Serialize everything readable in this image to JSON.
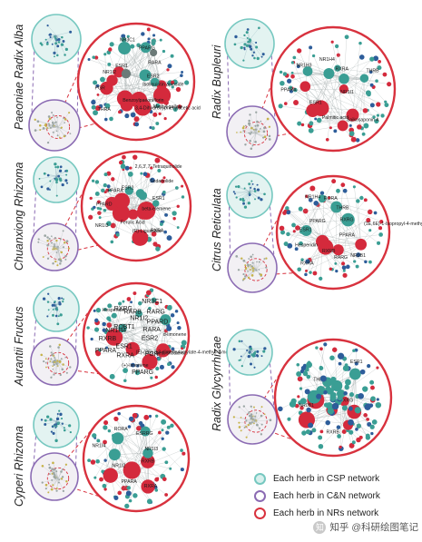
{
  "colors": {
    "teal": "#3a9e94",
    "teal_ring": "#76c8c0",
    "purple_ring": "#8b6bb3",
    "red": "#d42a3c",
    "red_ring": "#d8323e",
    "blue_node": "#2d5d9a",
    "grey_node": "#6b7a78"
  },
  "herbs": [
    {
      "name": "Paeoniae Radix Alba",
      "nodes": {
        "red": [
          "ESR1",
          "NR3C1",
          "PPARG",
          "NR1I2",
          "RARA",
          "THRA",
          "ESR2",
          "PGR",
          "NR1I3"
        ],
        "teal": [
          "Paeoniflorin",
          "Albiflorin",
          "benzoic acid",
          "(+)-catechin",
          "gallic acid",
          "kaempferol"
        ],
        "labels": [
          "Isoliquiritin apioside",
          "Methyl gallate",
          "3,4-Dihydroxyphenylacetic acid",
          "Benzoylpaeoniflorin",
          "THRA",
          "PGR",
          "NR1I2",
          "ESR1",
          "NR3C1",
          "PPARG",
          "RARA",
          "ESR2"
        ]
      }
    },
    {
      "name": "Chuanxiong Rhizoma",
      "nodes": {
        "red": [
          "RXRA",
          "ESR1",
          "NR3C1",
          "PPARG",
          "ESR2",
          "PPARD",
          "NR1I3"
        ],
        "teal": [
          "Ligustilide",
          "senkyunolide A",
          "Ferulic acid",
          "butylidenephthalide"
        ],
        "labels": [
          "beta-elemene",
          "RXRA",
          "(R)-Ligustilide",
          "Ferulic Acid",
          "NR1I3",
          "PPARD",
          "PPARA",
          "ESR2",
          "2,6,3',7'-Tetraquinolide",
          "Sedanolide",
          "ESR1"
        ]
      }
    },
    {
      "name": "Aurantii Fructus",
      "nodes": {
        "red": [
          "ESR1",
          "PPARG",
          "RXRA",
          "NR3C1"
        ],
        "teal": [
          "Naringenin",
          "Hesperidin",
          "Nobiletin"
        ],
        "labels": [
          "ESR2",
          "beta-sitosterol",
          "PGR",
          "(E)-(2S)-3,3-dimethylacrylate-4-methyl-7-methoxy-coumarin",
          "PPARG",
          "(+)-limonene",
          "RXRA",
          "ESR1",
          "PPARA",
          "RXRB",
          "NR1H4",
          "ROBT1",
          "Hesperidin",
          "RXRG",
          "RARB",
          "NR1I2",
          "NR3C1",
          "RARG",
          "PPARD",
          "RARA",
          "d-limonene"
        ]
      }
    },
    {
      "name": "Cyperi Rhizoma",
      "nodes": {
        "red": [
          "RXRA",
          "ESR1",
          "PGR",
          "NR1I2"
        ],
        "teal": [
          "alpha-cyperone",
          "cyperene",
          "nootkatone",
          "beta-selinene"
        ],
        "labels": [
          "RXRB",
          "RXRA",
          "PPARA",
          "NR1I2",
          "NR1I4",
          "RORA",
          "ESRRG",
          "NR1I3"
        ]
      }
    },
    {
      "name": "Radix Bupleuri",
      "nodes": {
        "red": [
          "ESR1",
          "PPARA",
          "PPARG",
          "NR3C1",
          "RXRA",
          "NR1H4"
        ],
        "teal": [
          "Saikosaponin A",
          "Saikosaponin D",
          "Quercetin",
          "Rutin",
          "Isorhamnetin"
        ],
        "labels": [
          "NR1I1",
          "Saikosaponin A",
          "Palmitic acid",
          "ESR1",
          "PPARA",
          "NR1H3",
          "NR1H4",
          "RXRA",
          "THRB"
        ]
      }
    },
    {
      "name": "Citrus Reticulata",
      "nodes": {
        "red": [
          "ESR1",
          "PPARG",
          "PGR",
          "RXRA"
        ],
        "teal": [
          "Hesperidin",
          "Nobiletin",
          "Tangeretin",
          "Naringin"
        ],
        "labels": [
          "PPARA",
          "NR0B1",
          "RARG",
          "RXRB",
          "RXRA",
          "Hesperidin",
          "ESR1",
          "PPARG",
          "NR1H4",
          "RORA",
          "THRB",
          "RXRG",
          "(1E,6E)-1-Isopropyl-4-methylbutadienyl-3,15-dione"
        ]
      }
    },
    {
      "name": "Radix Glycyrrhizae",
      "nodes": {
        "red": [
          "ESR1",
          "PPARG",
          "NR3C1",
          "RXRA",
          "PGR",
          "AR"
        ],
        "teal": [
          "Glycyrrhizin",
          "Liquiritin",
          "Isoliquiritigenin",
          "Glabridin",
          "Licochalcone A",
          "Formononetin"
        ],
        "labels": [
          "RXRG",
          "RXRB",
          "NR0B1",
          "THRA",
          "ESR1"
        ]
      }
    }
  ],
  "legend": [
    {
      "label": "Each herb in CSP network",
      "color": "#76c8c0",
      "fill": "#d7efec"
    },
    {
      "label": "Each herb in C&N network",
      "color": "#8b6bb3",
      "fill": "#ffffff"
    },
    {
      "label": "Each herb in NRs network",
      "color": "#d8323e",
      "fill": "#ffffff"
    }
  ],
  "watermark": "知乎 @科研绘图笔记"
}
